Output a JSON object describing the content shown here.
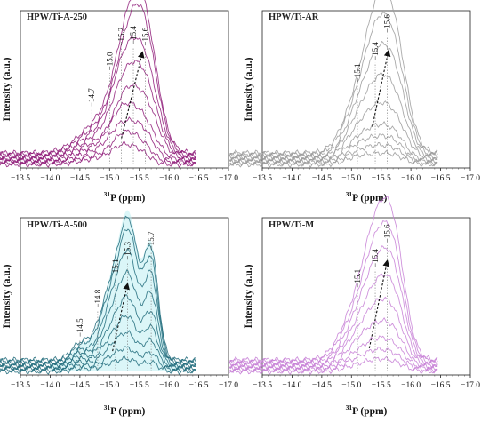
{
  "chart_data": [
    {
      "type": "line",
      "title": "HPW/Ti-A-250",
      "xlabel_sup": "31",
      "xlabel": "P (ppm)",
      "ylabel": "Intensity (a.u.)",
      "xlim": [
        -13.5,
        -17.0
      ],
      "xticks": [
        -13.5,
        -14.0,
        -14.5,
        -15.0,
        -15.5,
        -16.0,
        -16.5,
        -17.0
      ],
      "xtick_labels": [
        "−13.5",
        "−14.0",
        "−14.5",
        "−15.0",
        "−15.5",
        "−16.0",
        "−16.5",
        "−17.0"
      ],
      "ylim": [
        0,
        1
      ],
      "color": "#8e1a78",
      "peak_labels": [
        {
          "x": -14.7,
          "label": "−14.7",
          "y": 0.38
        },
        {
          "x": -15.0,
          "label": "−15.0",
          "y": 0.63
        },
        {
          "x": -15.2,
          "label": "−15.2",
          "y": 0.8
        },
        {
          "x": -15.4,
          "label": "−15.4",
          "y": 0.81
        },
        {
          "x": -15.6,
          "label": "−15.6",
          "y": 0.8
        }
      ],
      "arrow": {
        "x1": -15.2,
        "y1": 0.18,
        "x2": -15.55,
        "y2": 0.77
      },
      "series": [
        {
          "peaks": [
            [
              -14.8,
              0.04,
              0.3
            ],
            [
              -15.2,
              0.1,
              0.18
            ],
            [
              -15.5,
              0.08,
              0.18
            ]
          ]
        },
        {
          "peaks": [
            [
              -14.8,
              0.05,
              0.3
            ],
            [
              -15.2,
              0.14,
              0.18
            ],
            [
              -15.5,
              0.14,
              0.2
            ]
          ]
        },
        {
          "peaks": [
            [
              -14.8,
              0.07,
              0.3
            ],
            [
              -15.2,
              0.2,
              0.2
            ],
            [
              -15.55,
              0.2,
              0.2
            ]
          ]
        },
        {
          "peaks": [
            [
              -14.8,
              0.09,
              0.3
            ],
            [
              -15.2,
              0.26,
              0.2
            ],
            [
              -15.55,
              0.27,
              0.22
            ]
          ]
        },
        {
          "peaks": [
            [
              -14.8,
              0.11,
              0.32
            ],
            [
              -15.25,
              0.33,
              0.2
            ],
            [
              -15.6,
              0.36,
              0.22
            ]
          ]
        },
        {
          "peaks": [
            [
              -14.8,
              0.13,
              0.32
            ],
            [
              -15.25,
              0.42,
              0.22
            ],
            [
              -15.6,
              0.46,
              0.22
            ]
          ]
        },
        {
          "peaks": [
            [
              -14.8,
              0.15,
              0.32
            ],
            [
              -15.25,
              0.52,
              0.22
            ],
            [
              -15.6,
              0.57,
              0.22
            ]
          ]
        },
        {
          "peaks": [
            [
              -14.8,
              0.17,
              0.32
            ],
            [
              -15.3,
              0.6,
              0.24
            ],
            [
              -15.6,
              0.66,
              0.22
            ]
          ]
        },
        {
          "peaks": [
            [
              -14.8,
              0.19,
              0.32
            ],
            [
              -15.3,
              0.66,
              0.24
            ],
            [
              -15.6,
              0.72,
              0.22
            ]
          ]
        }
      ]
    },
    {
      "type": "line",
      "title": "HPW/Ti-AR",
      "xlabel_sup": "31",
      "xlabel": "P (ppm)",
      "ylabel": "Intensity (a.u.)",
      "xlim": [
        -13.5,
        -17.0
      ],
      "xticks": [
        -13.5,
        -14.0,
        -14.5,
        -15.0,
        -15.5,
        -16.0,
        -16.5,
        -17.0
      ],
      "xtick_labels": [
        "−13.5",
        "−14.0",
        "−14.5",
        "−15.0",
        "−15.5",
        "−16.0",
        "−16.5",
        "−17.0"
      ],
      "ylim": [
        0,
        1
      ],
      "color": "#9a9a9a",
      "peak_labels": [
        {
          "x": -15.1,
          "label": "−15.1",
          "y": 0.55
        },
        {
          "x": -15.4,
          "label": "−15.4",
          "y": 0.7
        },
        {
          "x": -15.6,
          "label": "−15.6",
          "y": 0.89
        }
      ],
      "arrow": {
        "x1": -15.35,
        "y1": 0.26,
        "x2": -15.62,
        "y2": 0.78
      },
      "series": [
        {
          "peaks": [
            [
              -15.1,
              0.05,
              0.2
            ],
            [
              -15.4,
              0.04,
              0.18
            ],
            [
              -15.7,
              0.06,
              0.2
            ]
          ]
        },
        {
          "peaks": [
            [
              -15.1,
              0.07,
              0.2
            ],
            [
              -15.4,
              0.07,
              0.18
            ],
            [
              -15.7,
              0.09,
              0.2
            ]
          ]
        },
        {
          "peaks": [
            [
              -15.1,
              0.1,
              0.2
            ],
            [
              -15.4,
              0.1,
              0.18
            ],
            [
              -15.7,
              0.13,
              0.2
            ]
          ]
        },
        {
          "peaks": [
            [
              -15.1,
              0.13,
              0.2
            ],
            [
              -15.4,
              0.14,
              0.18
            ],
            [
              -15.7,
              0.18,
              0.2
            ]
          ]
        },
        {
          "peaks": [
            [
              -15.1,
              0.17,
              0.22
            ],
            [
              -15.4,
              0.2,
              0.2
            ],
            [
              -15.7,
              0.27,
              0.22
            ]
          ]
        },
        {
          "peaks": [
            [
              -15.1,
              0.22,
              0.22
            ],
            [
              -15.4,
              0.3,
              0.2
            ],
            [
              -15.7,
              0.4,
              0.22
            ]
          ]
        },
        {
          "peaks": [
            [
              -15.1,
              0.27,
              0.22
            ],
            [
              -15.4,
              0.4,
              0.2
            ],
            [
              -15.7,
              0.55,
              0.22
            ]
          ]
        },
        {
          "peaks": [
            [
              -15.1,
              0.31,
              0.24
            ],
            [
              -15.4,
              0.5,
              0.2
            ],
            [
              -15.7,
              0.68,
              0.22
            ]
          ]
        },
        {
          "peaks": [
            [
              -15.1,
              0.34,
              0.24
            ],
            [
              -15.4,
              0.58,
              0.2
            ],
            [
              -15.7,
              0.8,
              0.22
            ]
          ]
        }
      ]
    },
    {
      "type": "line",
      "title": "HPW/Ti-A-500",
      "xlabel_sup": "31",
      "xlabel": "P (ppm)",
      "ylabel": "Intensity (a.u.)",
      "xlim": [
        -13.5,
        -17.0
      ],
      "xticks": [
        -13.5,
        -14.0,
        -14.5,
        -15.0,
        -15.5,
        -16.0,
        -16.5,
        -17.0
      ],
      "xtick_labels": [
        "−13.5",
        "−14.0",
        "−14.5",
        "−15.0",
        "−15.5",
        "−16.0",
        "−16.5",
        "−17.0"
      ],
      "ylim": [
        0,
        1
      ],
      "color": "#1e6a7a",
      "halo": "#bdeff2",
      "peak_labels": [
        {
          "x": -14.5,
          "label": "−14.5",
          "y": 0.22
        },
        {
          "x": -14.8,
          "label": "−14.8",
          "y": 0.42
        },
        {
          "x": -15.1,
          "label": "−15.1",
          "y": 0.63
        },
        {
          "x": -15.3,
          "label": "−15.3",
          "y": 0.75
        },
        {
          "x": -15.7,
          "label": "−15.7",
          "y": 0.82
        }
      ],
      "arrow": {
        "x1": -15.05,
        "y1": 0.14,
        "x2": -15.3,
        "y2": 0.6
      },
      "series": [
        {
          "peaks": [
            [
              -14.5,
              0.02,
              0.15
            ],
            [
              -15.1,
              0.06,
              0.22
            ],
            [
              -15.35,
              0.05,
              0.15
            ],
            [
              -15.7,
              0.06,
              0.12
            ]
          ]
        },
        {
          "peaks": [
            [
              -14.5,
              0.03,
              0.15
            ],
            [
              -15.1,
              0.1,
              0.22
            ],
            [
              -15.35,
              0.09,
              0.15
            ],
            [
              -15.7,
              0.11,
              0.12
            ]
          ]
        },
        {
          "peaks": [
            [
              -14.5,
              0.04,
              0.15
            ],
            [
              -15.1,
              0.16,
              0.22
            ],
            [
              -15.35,
              0.15,
              0.15
            ],
            [
              -15.7,
              0.18,
              0.12
            ]
          ]
        },
        {
          "peaks": [
            [
              -14.5,
              0.05,
              0.15
            ],
            [
              -15.1,
              0.22,
              0.22
            ],
            [
              -15.35,
              0.22,
              0.15
            ],
            [
              -15.7,
              0.26,
              0.12
            ]
          ]
        },
        {
          "peaks": [
            [
              -14.5,
              0.06,
              0.15
            ],
            [
              -15.1,
              0.29,
              0.22
            ],
            [
              -15.35,
              0.3,
              0.15
            ],
            [
              -15.7,
              0.35,
              0.12
            ]
          ]
        },
        {
          "peaks": [
            [
              -14.5,
              0.07,
              0.15
            ],
            [
              -15.1,
              0.38,
              0.22
            ],
            [
              -15.35,
              0.4,
              0.15
            ],
            [
              -15.7,
              0.46,
              0.12
            ]
          ]
        },
        {
          "peaks": [
            [
              -14.5,
              0.08,
              0.15
            ],
            [
              -15.1,
              0.46,
              0.22
            ],
            [
              -15.35,
              0.5,
              0.15
            ],
            [
              -15.7,
              0.58,
              0.12
            ]
          ]
        },
        {
          "peaks": [
            [
              -14.5,
              0.09,
              0.15
            ],
            [
              -15.1,
              0.52,
              0.24
            ],
            [
              -15.35,
              0.58,
              0.15
            ],
            [
              -15.7,
              0.66,
              0.12
            ]
          ]
        },
        {
          "peaks": [
            [
              -14.5,
              0.1,
              0.15
            ],
            [
              -15.1,
              0.56,
              0.24
            ],
            [
              -15.35,
              0.62,
              0.15
            ],
            [
              -15.7,
              0.72,
              0.12
            ]
          ]
        }
      ]
    },
    {
      "type": "line",
      "title": "HPW/Ti-M",
      "xlabel_sup": "31",
      "xlabel": "P (ppm)",
      "ylabel": "Intensity (a.u.)",
      "xlim": [
        -13.5,
        -17.0
      ],
      "xticks": [
        -13.5,
        -14.0,
        -14.5,
        -15.0,
        -15.5,
        -16.0,
        -16.5,
        -17.0
      ],
      "xtick_labels": [
        "−13.5",
        "−14.0",
        "−14.5",
        "−15.0",
        "−15.5",
        "−16.0",
        "−16.5",
        "−17.0"
      ],
      "ylim": [
        0,
        1
      ],
      "color": "#c77fd6",
      "peak_labels": [
        {
          "x": -15.1,
          "label": "−15.1",
          "y": 0.56
        },
        {
          "x": -15.4,
          "label": "−15.4",
          "y": 0.7
        },
        {
          "x": -15.6,
          "label": "−15.6",
          "y": 0.87
        }
      ],
      "arrow": {
        "x1": -15.3,
        "y1": 0.16,
        "x2": -15.6,
        "y2": 0.76
      },
      "series": [
        {
          "peaks": [
            [
              -15.1,
              0.04,
              0.22
            ],
            [
              -15.4,
              0.05,
              0.18
            ],
            [
              -15.7,
              0.06,
              0.2
            ]
          ]
        },
        {
          "peaks": [
            [
              -15.1,
              0.07,
              0.22
            ],
            [
              -15.4,
              0.08,
              0.18
            ],
            [
              -15.7,
              0.1,
              0.2
            ]
          ]
        },
        {
          "peaks": [
            [
              -15.1,
              0.1,
              0.22
            ],
            [
              -15.4,
              0.12,
              0.18
            ],
            [
              -15.7,
              0.15,
              0.2
            ]
          ]
        },
        {
          "peaks": [
            [
              -15.1,
              0.14,
              0.22
            ],
            [
              -15.4,
              0.18,
              0.2
            ],
            [
              -15.7,
              0.22,
              0.2
            ]
          ]
        },
        {
          "peaks": [
            [
              -15.1,
              0.18,
              0.24
            ],
            [
              -15.4,
              0.25,
              0.2
            ],
            [
              -15.7,
              0.32,
              0.2
            ]
          ]
        },
        {
          "peaks": [
            [
              -15.1,
              0.22,
              0.24
            ],
            [
              -15.4,
              0.33,
              0.2
            ],
            [
              -15.7,
              0.44,
              0.2
            ]
          ]
        },
        {
          "peaks": [
            [
              -15.1,
              0.27,
              0.24
            ],
            [
              -15.4,
              0.42,
              0.2
            ],
            [
              -15.7,
              0.57,
              0.2
            ]
          ]
        },
        {
          "peaks": [
            [
              -15.1,
              0.31,
              0.26
            ],
            [
              -15.4,
              0.5,
              0.2
            ],
            [
              -15.7,
              0.68,
              0.2
            ]
          ]
        },
        {
          "peaks": [
            [
              -15.1,
              0.35,
              0.26
            ],
            [
              -15.4,
              0.58,
              0.2
            ],
            [
              -15.7,
              0.8,
              0.2
            ]
          ]
        }
      ]
    }
  ]
}
